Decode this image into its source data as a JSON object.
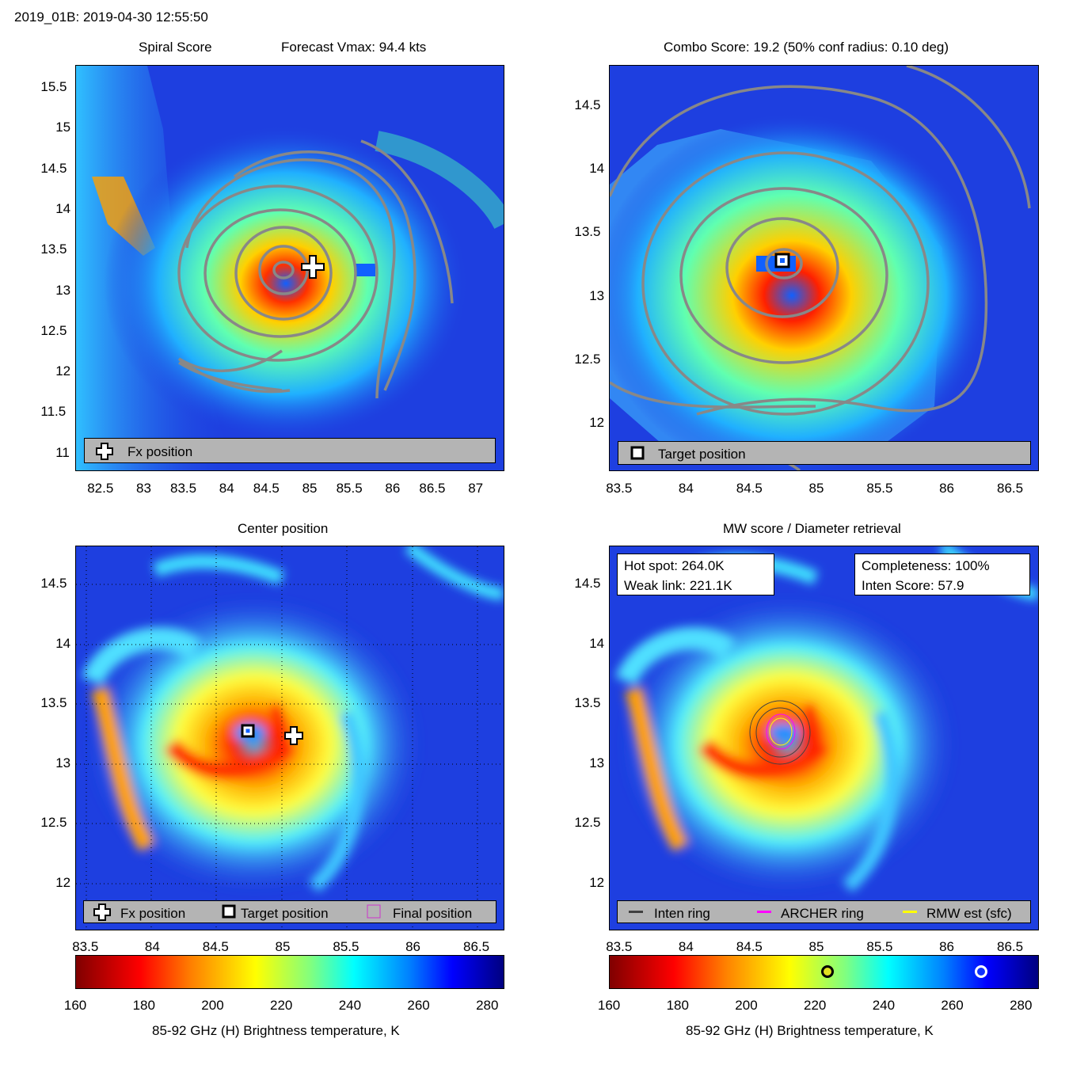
{
  "header": {
    "title": "2019_01B: 2019-04-30 12:55:50"
  },
  "panels": {
    "spiral": {
      "title_left": "Spiral Score",
      "title_right": "Forecast Vmax: 94.4 kts",
      "legend": "Fx position",
      "xticks": [
        "82.5",
        "83",
        "83.5",
        "84",
        "84.5",
        "85",
        "85.5",
        "86",
        "86.5",
        "87"
      ],
      "yticks": [
        "15.5",
        "15",
        "14.5",
        "14",
        "13.5",
        "13",
        "12.5",
        "12",
        "11.5",
        "11"
      ]
    },
    "combo": {
      "title": "Combo Score: 19.2  (50% conf radius: 0.10 deg)",
      "legend": "Target position",
      "xticks": [
        "83.5",
        "84",
        "84.5",
        "85",
        "85.5",
        "86",
        "86.5"
      ],
      "yticks": [
        "14.5",
        "14",
        "13.5",
        "13",
        "12.5",
        "12"
      ]
    },
    "center": {
      "title": "Center position",
      "legend": [
        "Fx position",
        "Target position",
        "Final position"
      ],
      "xticks": [
        "83.5",
        "84",
        "84.5",
        "85",
        "85.5",
        "86",
        "86.5"
      ],
      "yticks": [
        "14.5",
        "14",
        "13.5",
        "13",
        "12.5",
        "12"
      ]
    },
    "mw": {
      "title": "MW score / Diameter retrieval",
      "hot_spot": "Hot spot: 264.0K",
      "weak_link": "Weak link: 221.1K",
      "completeness": "Completeness: 100%",
      "inten_score": "Inten Score: 57.9",
      "legend": [
        "Inten ring",
        "ARCHER ring",
        "RMW est (sfc)"
      ],
      "xticks": [
        "83.5",
        "84",
        "84.5",
        "85",
        "85.5",
        "86",
        "86.5"
      ],
      "yticks": [
        "14.5",
        "14",
        "13.5",
        "13",
        "12.5",
        "12"
      ]
    }
  },
  "colorbars": {
    "ticks": [
      "160",
      "180",
      "200",
      "220",
      "240",
      "260",
      "280"
    ],
    "label": "85-92 GHz (H) Brightness temperature, K",
    "markers": {
      "weak_link_K": 221.1,
      "hot_spot_K": 264.0
    }
  },
  "colors": {
    "contour": "#888888",
    "archer_ring": "#ff00ff",
    "rmw_ring": "#ffff00",
    "inten_ring": "#404040",
    "final_marker": "#cc33cc"
  }
}
